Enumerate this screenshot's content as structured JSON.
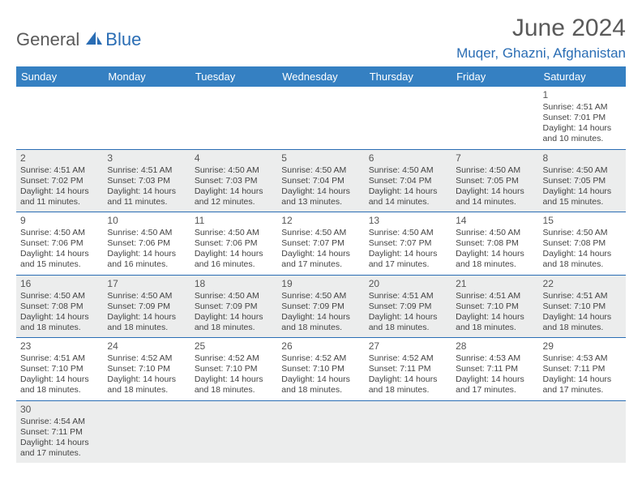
{
  "logo": {
    "part1": "General",
    "part2": "Blue"
  },
  "title": "June 2024",
  "location": "Muqer, Ghazni, Afghanistan",
  "colors": {
    "header_bg": "#3580c2",
    "accent_blue": "#2a6db4",
    "row_shade": "#eceded",
    "text_gray": "#5a5a5a"
  },
  "day_headers": [
    "Sunday",
    "Monday",
    "Tuesday",
    "Wednesday",
    "Thursday",
    "Friday",
    "Saturday"
  ],
  "weeks": [
    {
      "shade": false,
      "days": [
        null,
        null,
        null,
        null,
        null,
        null,
        {
          "n": "1",
          "sr": "Sunrise: 4:51 AM",
          "ss": "Sunset: 7:01 PM",
          "d1": "Daylight: 14 hours",
          "d2": "and 10 minutes."
        }
      ]
    },
    {
      "shade": true,
      "days": [
        {
          "n": "2",
          "sr": "Sunrise: 4:51 AM",
          "ss": "Sunset: 7:02 PM",
          "d1": "Daylight: 14 hours",
          "d2": "and 11 minutes."
        },
        {
          "n": "3",
          "sr": "Sunrise: 4:51 AM",
          "ss": "Sunset: 7:03 PM",
          "d1": "Daylight: 14 hours",
          "d2": "and 11 minutes."
        },
        {
          "n": "4",
          "sr": "Sunrise: 4:50 AM",
          "ss": "Sunset: 7:03 PM",
          "d1": "Daylight: 14 hours",
          "d2": "and 12 minutes."
        },
        {
          "n": "5",
          "sr": "Sunrise: 4:50 AM",
          "ss": "Sunset: 7:04 PM",
          "d1": "Daylight: 14 hours",
          "d2": "and 13 minutes."
        },
        {
          "n": "6",
          "sr": "Sunrise: 4:50 AM",
          "ss": "Sunset: 7:04 PM",
          "d1": "Daylight: 14 hours",
          "d2": "and 14 minutes."
        },
        {
          "n": "7",
          "sr": "Sunrise: 4:50 AM",
          "ss": "Sunset: 7:05 PM",
          "d1": "Daylight: 14 hours",
          "d2": "and 14 minutes."
        },
        {
          "n": "8",
          "sr": "Sunrise: 4:50 AM",
          "ss": "Sunset: 7:05 PM",
          "d1": "Daylight: 14 hours",
          "d2": "and 15 minutes."
        }
      ]
    },
    {
      "shade": false,
      "days": [
        {
          "n": "9",
          "sr": "Sunrise: 4:50 AM",
          "ss": "Sunset: 7:06 PM",
          "d1": "Daylight: 14 hours",
          "d2": "and 15 minutes."
        },
        {
          "n": "10",
          "sr": "Sunrise: 4:50 AM",
          "ss": "Sunset: 7:06 PM",
          "d1": "Daylight: 14 hours",
          "d2": "and 16 minutes."
        },
        {
          "n": "11",
          "sr": "Sunrise: 4:50 AM",
          "ss": "Sunset: 7:06 PM",
          "d1": "Daylight: 14 hours",
          "d2": "and 16 minutes."
        },
        {
          "n": "12",
          "sr": "Sunrise: 4:50 AM",
          "ss": "Sunset: 7:07 PM",
          "d1": "Daylight: 14 hours",
          "d2": "and 17 minutes."
        },
        {
          "n": "13",
          "sr": "Sunrise: 4:50 AM",
          "ss": "Sunset: 7:07 PM",
          "d1": "Daylight: 14 hours",
          "d2": "and 17 minutes."
        },
        {
          "n": "14",
          "sr": "Sunrise: 4:50 AM",
          "ss": "Sunset: 7:08 PM",
          "d1": "Daylight: 14 hours",
          "d2": "and 18 minutes."
        },
        {
          "n": "15",
          "sr": "Sunrise: 4:50 AM",
          "ss": "Sunset: 7:08 PM",
          "d1": "Daylight: 14 hours",
          "d2": "and 18 minutes."
        }
      ]
    },
    {
      "shade": true,
      "days": [
        {
          "n": "16",
          "sr": "Sunrise: 4:50 AM",
          "ss": "Sunset: 7:08 PM",
          "d1": "Daylight: 14 hours",
          "d2": "and 18 minutes."
        },
        {
          "n": "17",
          "sr": "Sunrise: 4:50 AM",
          "ss": "Sunset: 7:09 PM",
          "d1": "Daylight: 14 hours",
          "d2": "and 18 minutes."
        },
        {
          "n": "18",
          "sr": "Sunrise: 4:50 AM",
          "ss": "Sunset: 7:09 PM",
          "d1": "Daylight: 14 hours",
          "d2": "and 18 minutes."
        },
        {
          "n": "19",
          "sr": "Sunrise: 4:50 AM",
          "ss": "Sunset: 7:09 PM",
          "d1": "Daylight: 14 hours",
          "d2": "and 18 minutes."
        },
        {
          "n": "20",
          "sr": "Sunrise: 4:51 AM",
          "ss": "Sunset: 7:09 PM",
          "d1": "Daylight: 14 hours",
          "d2": "and 18 minutes."
        },
        {
          "n": "21",
          "sr": "Sunrise: 4:51 AM",
          "ss": "Sunset: 7:10 PM",
          "d1": "Daylight: 14 hours",
          "d2": "and 18 minutes."
        },
        {
          "n": "22",
          "sr": "Sunrise: 4:51 AM",
          "ss": "Sunset: 7:10 PM",
          "d1": "Daylight: 14 hours",
          "d2": "and 18 minutes."
        }
      ]
    },
    {
      "shade": false,
      "days": [
        {
          "n": "23",
          "sr": "Sunrise: 4:51 AM",
          "ss": "Sunset: 7:10 PM",
          "d1": "Daylight: 14 hours",
          "d2": "and 18 minutes."
        },
        {
          "n": "24",
          "sr": "Sunrise: 4:52 AM",
          "ss": "Sunset: 7:10 PM",
          "d1": "Daylight: 14 hours",
          "d2": "and 18 minutes."
        },
        {
          "n": "25",
          "sr": "Sunrise: 4:52 AM",
          "ss": "Sunset: 7:10 PM",
          "d1": "Daylight: 14 hours",
          "d2": "and 18 minutes."
        },
        {
          "n": "26",
          "sr": "Sunrise: 4:52 AM",
          "ss": "Sunset: 7:10 PM",
          "d1": "Daylight: 14 hours",
          "d2": "and 18 minutes."
        },
        {
          "n": "27",
          "sr": "Sunrise: 4:52 AM",
          "ss": "Sunset: 7:11 PM",
          "d1": "Daylight: 14 hours",
          "d2": "and 18 minutes."
        },
        {
          "n": "28",
          "sr": "Sunrise: 4:53 AM",
          "ss": "Sunset: 7:11 PM",
          "d1": "Daylight: 14 hours",
          "d2": "and 17 minutes."
        },
        {
          "n": "29",
          "sr": "Sunrise: 4:53 AM",
          "ss": "Sunset: 7:11 PM",
          "d1": "Daylight: 14 hours",
          "d2": "and 17 minutes."
        }
      ]
    },
    {
      "shade": true,
      "days": [
        {
          "n": "30",
          "sr": "Sunrise: 4:54 AM",
          "ss": "Sunset: 7:11 PM",
          "d1": "Daylight: 14 hours",
          "d2": "and 17 minutes."
        },
        null,
        null,
        null,
        null,
        null,
        null
      ]
    }
  ]
}
